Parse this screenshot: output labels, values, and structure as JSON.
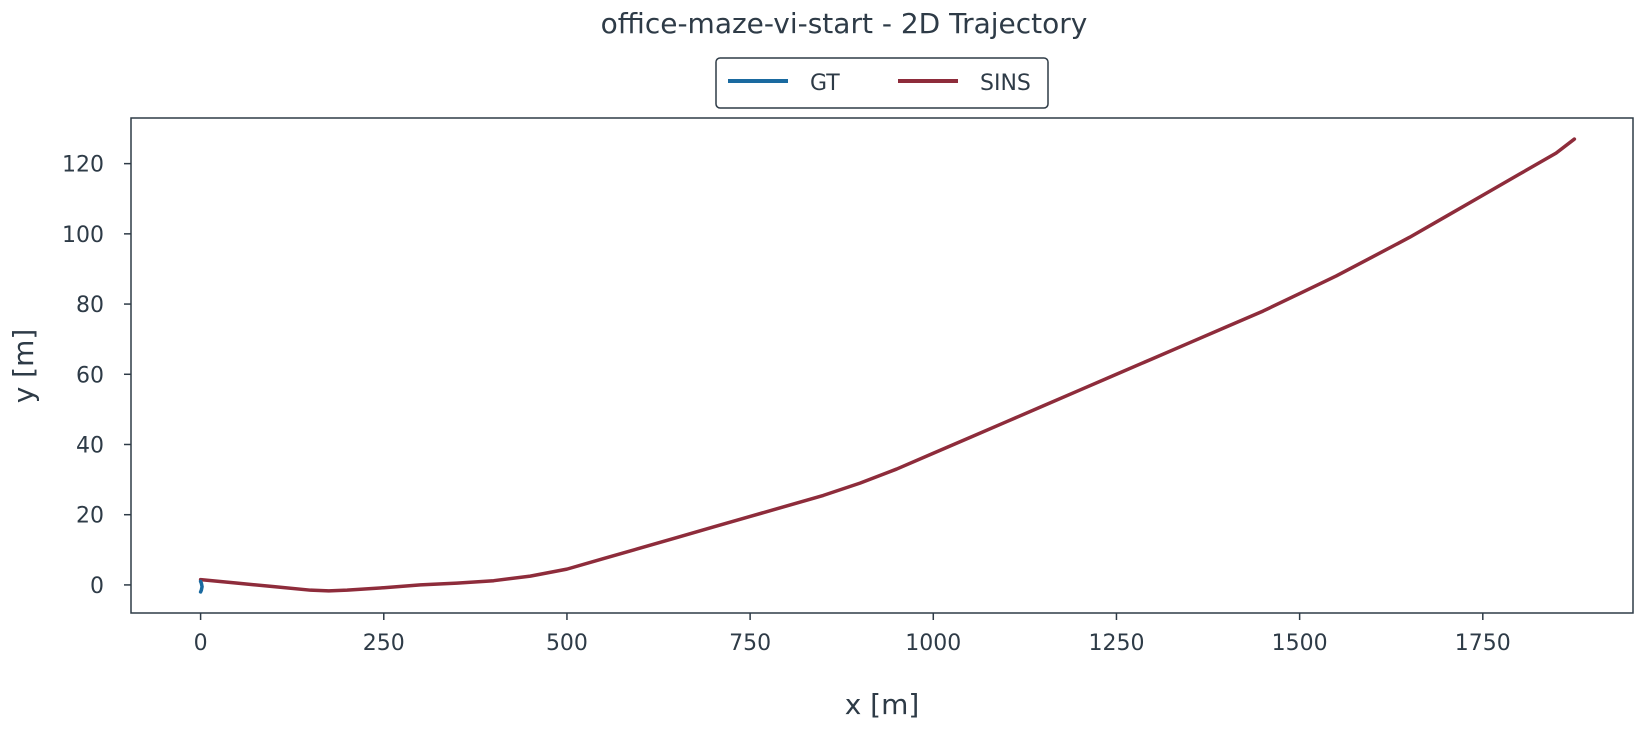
{
  "chart_data": {
    "type": "line",
    "title": "office-maze-vi-start - 2D Trajectory",
    "xlabel": "x [m]",
    "ylabel": "y [m]",
    "xlim": [
      -95,
      1955
    ],
    "ylim": [
      -8,
      133
    ],
    "xticks": [
      0,
      250,
      500,
      750,
      1000,
      1250,
      1500,
      1750
    ],
    "yticks": [
      0,
      20,
      40,
      60,
      80,
      100,
      120
    ],
    "xtick_labels": [
      "0",
      "250",
      "500",
      "750",
      "1000",
      "1250",
      "1500",
      "1750"
    ],
    "ytick_labels": [
      "0",
      "20",
      "40",
      "60",
      "80",
      "100",
      "120"
    ],
    "grid": false,
    "legend_position": "top-center",
    "legend_labels": [
      "GT",
      "SINS"
    ],
    "series": [
      {
        "name": "GT",
        "color": "#1a6aa0",
        "x": [
          0,
          1,
          2,
          1,
          0
        ],
        "y": [
          1,
          0.5,
          -0.5,
          -1.5,
          -2
        ]
      },
      {
        "name": "SINS",
        "color": "#8e2c3b",
        "x": [
          0,
          50,
          100,
          150,
          175,
          200,
          250,
          300,
          350,
          400,
          450,
          500,
          550,
          600,
          650,
          700,
          750,
          800,
          850,
          900,
          950,
          1000,
          1050,
          1100,
          1150,
          1200,
          1250,
          1300,
          1350,
          1400,
          1450,
          1500,
          1550,
          1600,
          1650,
          1700,
          1750,
          1800,
          1850,
          1875
        ],
        "y": [
          1.5,
          0.5,
          -0.5,
          -1.5,
          -1.7,
          -1.5,
          -0.8,
          0,
          0.5,
          1.2,
          2.5,
          4.5,
          7.5,
          10.5,
          13.5,
          16.5,
          19.5,
          22.5,
          25.5,
          29,
          33,
          37.5,
          42,
          46.5,
          51,
          55.5,
          60,
          64.5,
          69,
          73.5,
          78,
          83,
          88,
          93.5,
          99,
          105,
          111,
          117,
          123,
          127
        ]
      }
    ]
  }
}
